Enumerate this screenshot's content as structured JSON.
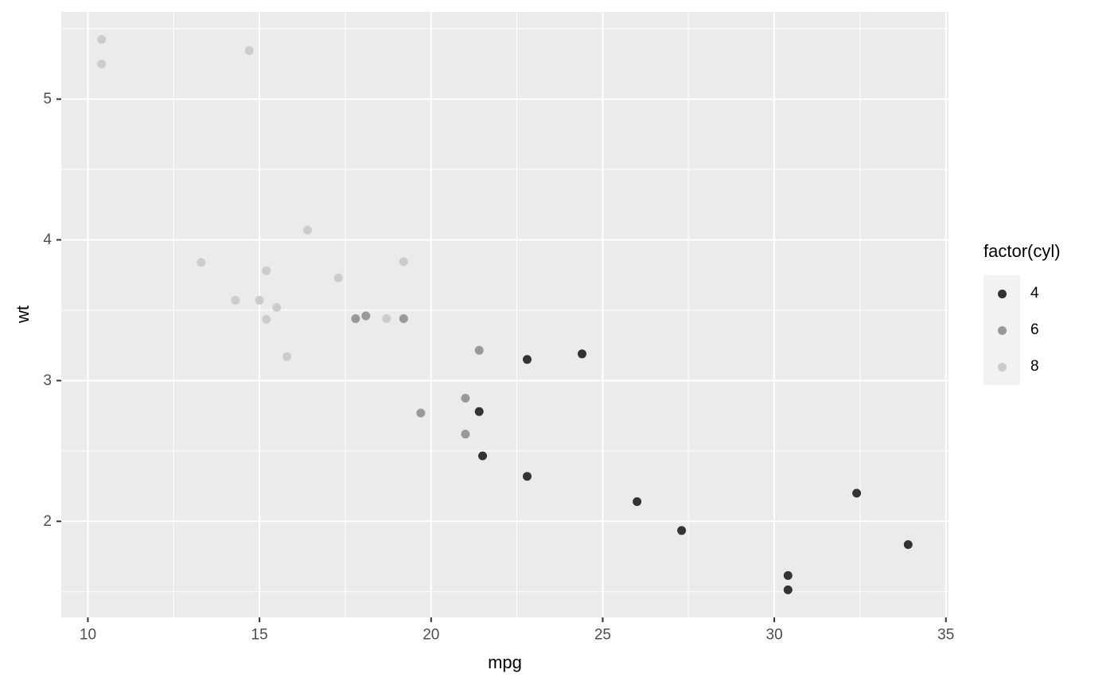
{
  "figure": {
    "background": "#ffffff",
    "panel_background": "#ebebeb",
    "grid_color": "#ffffff",
    "tick_mark_color": "#333333",
    "tick_label_color": "#4d4d4d",
    "axis_title_color": "#000000",
    "point_radius": 5.5
  },
  "chart_data": {
    "type": "scatter",
    "title": "",
    "xlabel": "mpg",
    "ylabel": "wt",
    "xlim": [
      9.2245,
      35.0755
    ],
    "ylim": [
      1.3175,
      5.6195
    ],
    "x_major_ticks": [
      10,
      15,
      20,
      25,
      30,
      35
    ],
    "x_minor_ticks": [
      12.5,
      17.5,
      22.5,
      27.5,
      32.5
    ],
    "y_major_ticks": [
      2,
      3,
      4,
      5
    ],
    "y_minor_ticks": [
      1.5,
      2.5,
      3.5,
      4.5,
      5.5
    ],
    "x_tick_labels": [
      "10",
      "15",
      "20",
      "25",
      "30",
      "35"
    ],
    "y_tick_labels": [
      "2",
      "3",
      "4",
      "5"
    ],
    "grid": true,
    "legend": {
      "title": "factor(cyl)",
      "position": "right",
      "entries": [
        {
          "label": "4",
          "color": "#333333"
        },
        {
          "label": "6",
          "color": "#999999"
        },
        {
          "label": "8",
          "color": "#cccccc"
        }
      ]
    },
    "series": [
      {
        "name": "8",
        "color": "#cccccc",
        "points": [
          [
            18.7,
            3.44
          ],
          [
            14.3,
            3.57
          ],
          [
            16.4,
            4.07
          ],
          [
            17.3,
            3.73
          ],
          [
            15.2,
            3.78
          ],
          [
            10.4,
            5.25
          ],
          [
            10.4,
            5.424
          ],
          [
            14.7,
            5.345
          ],
          [
            15.5,
            3.52
          ],
          [
            15.2,
            3.435
          ],
          [
            13.3,
            3.84
          ],
          [
            19.2,
            3.845
          ],
          [
            15.8,
            3.17
          ],
          [
            15.0,
            3.57
          ]
        ]
      },
      {
        "name": "6",
        "color": "#999999",
        "points": [
          [
            21.0,
            2.62
          ],
          [
            21.0,
            2.875
          ],
          [
            21.4,
            3.215
          ],
          [
            18.1,
            3.46
          ],
          [
            19.2,
            3.44
          ],
          [
            17.8,
            3.44
          ],
          [
            19.7,
            2.77
          ]
        ]
      },
      {
        "name": "4",
        "color": "#333333",
        "points": [
          [
            22.8,
            2.32
          ],
          [
            24.4,
            3.19
          ],
          [
            22.8,
            3.15
          ],
          [
            32.4,
            2.2
          ],
          [
            30.4,
            1.615
          ],
          [
            33.9,
            1.835
          ],
          [
            21.5,
            2.465
          ],
          [
            27.3,
            1.935
          ],
          [
            26.0,
            2.14
          ],
          [
            30.4,
            1.513
          ],
          [
            21.4,
            2.78
          ]
        ]
      }
    ]
  }
}
